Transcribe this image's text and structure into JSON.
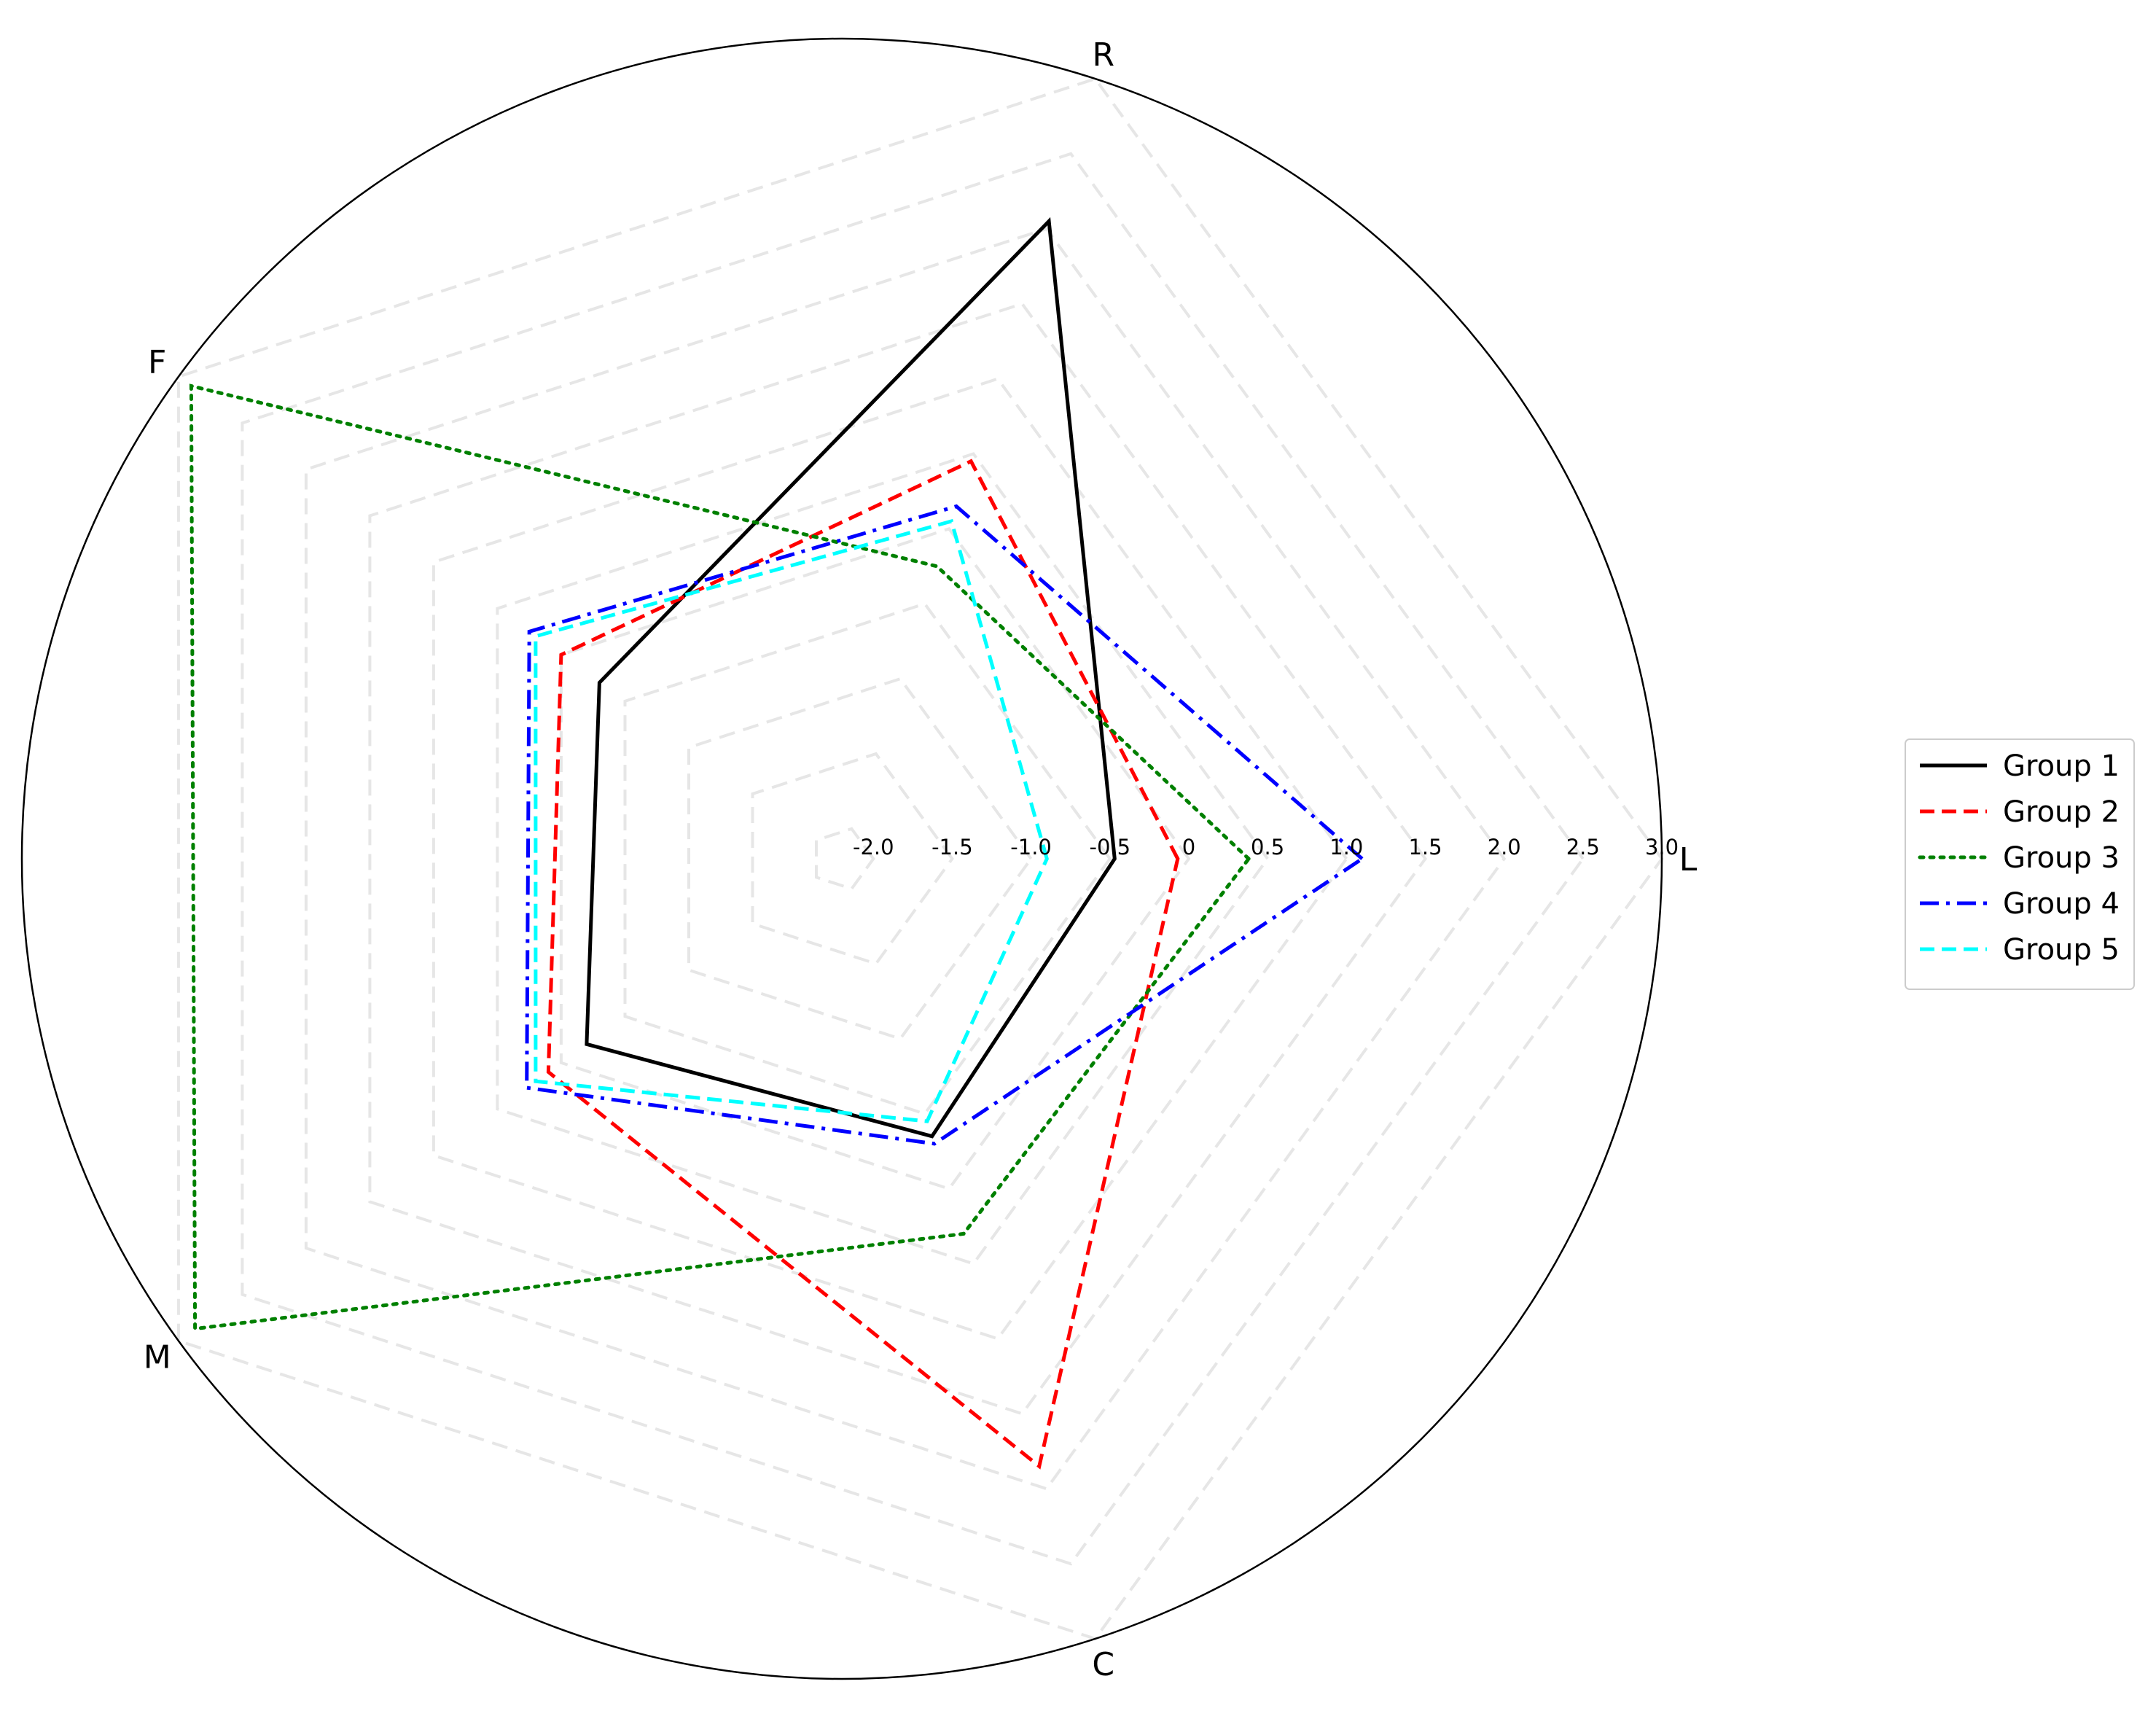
{
  "chart_data": {
    "type": "radar",
    "title": "",
    "axes": [
      "L",
      "R",
      "F",
      "M",
      "C"
    ],
    "radial_ticks": [
      "-2.0",
      "-1.5",
      "-1.0",
      "-0.5",
      "0",
      "0.5",
      "1.0",
      "1.5",
      "2.0",
      "2.5",
      "3.0"
    ],
    "rlim": [
      -2.2,
      3.0
    ],
    "grid": true,
    "legend_position": "right",
    "series": [
      {
        "name": "Group 1",
        "values": [
          -0.47,
          2.05,
          -0.3,
          -0.2,
          -0.35
        ],
        "color": "#000000",
        "linestyle": "solid"
      },
      {
        "name": "Group 2",
        "values": [
          -0.07,
          0.45,
          0.0,
          0.1,
          1.85
        ],
        "color": "#ff0000",
        "linestyle": "dashed"
      },
      {
        "name": "Group 3",
        "values": [
          0.38,
          -0.25,
          2.9,
          2.87,
          0.3
        ],
        "color": "#008000",
        "linestyle": "dotted"
      },
      {
        "name": "Group 4",
        "values": [
          1.1,
          0.15,
          0.25,
          0.27,
          -0.3
        ],
        "color": "#0000ff",
        "linestyle": "dashdot"
      },
      {
        "name": "Group 5",
        "values": [
          -0.9,
          0.05,
          0.2,
          0.2,
          -0.45
        ],
        "color": "#00ffff",
        "linestyle": "dashed"
      }
    ]
  }
}
